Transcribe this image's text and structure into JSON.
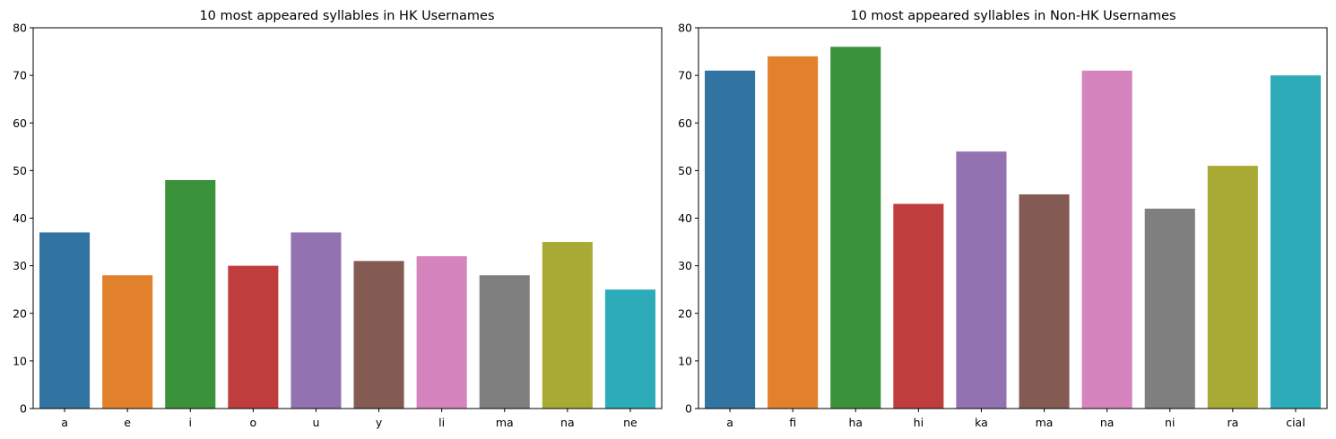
{
  "chart_data": [
    {
      "type": "bar",
      "title": "10 most appeared syllables in HK Usernames",
      "xlabel": "",
      "ylabel": "",
      "categories": [
        "a",
        "e",
        "i",
        "o",
        "u",
        "y",
        "li",
        "ma",
        "na",
        "ne"
      ],
      "values": [
        37,
        28,
        48,
        30,
        37,
        31,
        32,
        28,
        35,
        25
      ],
      "ylim": [
        0,
        80
      ],
      "yticks": [
        "0",
        "10",
        "20",
        "30",
        "40",
        "50",
        "60",
        "70",
        "80"
      ],
      "grid": false,
      "colors": [
        "#3274a1",
        "#e1812c",
        "#3a923a",
        "#c03d3e",
        "#9372b2",
        "#845b53",
        "#d684bd",
        "#7f7f7f",
        "#a9aa35",
        "#2eabb8"
      ]
    },
    {
      "type": "bar",
      "title": "10 most appeared syllables in Non-HK Usernames",
      "xlabel": "",
      "ylabel": "",
      "categories": [
        "a",
        "fi",
        "ha",
        "hi",
        "ka",
        "ma",
        "na",
        "ni",
        "ra",
        "cial"
      ],
      "values": [
        71,
        74,
        76,
        43,
        54,
        45,
        71,
        42,
        51,
        70
      ],
      "ylim": [
        0,
        80
      ],
      "yticks": [
        "0",
        "10",
        "20",
        "30",
        "40",
        "50",
        "60",
        "70",
        "80"
      ],
      "grid": false,
      "colors": [
        "#3274a1",
        "#e1812c",
        "#3a923a",
        "#c03d3e",
        "#9372b2",
        "#845b53",
        "#d684bd",
        "#7f7f7f",
        "#a9aa35",
        "#2eabb8"
      ]
    }
  ]
}
